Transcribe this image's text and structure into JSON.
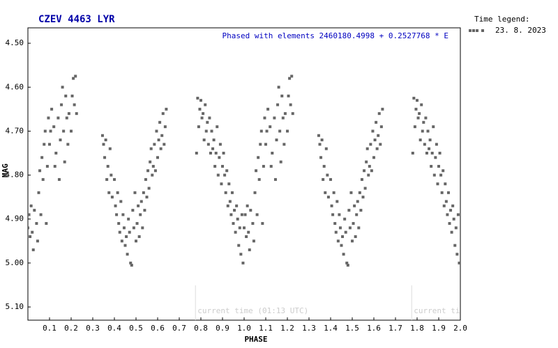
{
  "chart_data": {
    "type": "scatter",
    "title": "CZEV 4463 LYR",
    "subtitle": "Phased with elements 2460180.4998 + 0.2527768 * E",
    "x_label": "PHASE",
    "y_label": "MAG",
    "legend_title": "Time legend:",
    "y_inverted": true,
    "xlim": [
      0,
      2
    ],
    "ylim": [
      4.465,
      5.13
    ],
    "xticks": [
      0.1,
      0.2,
      0.3,
      0.4,
      0.5,
      0.6,
      0.7,
      0.8,
      0.9,
      {
        "value": 1,
        "label": "1.0"
      },
      1.1,
      1.2,
      1.3,
      1.4,
      1.5,
      1.6,
      1.7,
      1.8,
      1.9,
      {
        "value": 2,
        "label": "2.0"
      }
    ],
    "yticks": [
      {
        "value": 4.5,
        "label": "4.50"
      },
      {
        "value": 4.6,
        "label": "4.60"
      },
      {
        "value": 4.7,
        "label": "4.70"
      },
      {
        "value": 4.8,
        "label": "4.80"
      },
      {
        "value": 4.9,
        "label": "4.90"
      },
      {
        "value": 5.0,
        "label": "5.00"
      },
      {
        "value": 5.1,
        "label": "5.10"
      }
    ],
    "current_time": {
      "label": "current time (01:13 UTC)",
      "phases": [
        0.775,
        1.775
      ]
    },
    "series": [
      {
        "name": "23. 8. 2023",
        "color": "#666666",
        "x": [
          0,
          0.005,
          0.01,
          0.015,
          0.02,
          0.025,
          0.03,
          0.04,
          0.045,
          0.05,
          0.055,
          0.06,
          0.065,
          0.07,
          0.075,
          0.08,
          0.085,
          0.09,
          0.095,
          0.1,
          0.105,
          0.11,
          0.12,
          0.125,
          0.13,
          0.14,
          0.145,
          0.15,
          0.155,
          0.16,
          0.165,
          0.17,
          0.175,
          0.18,
          0.185,
          0.19,
          0.2,
          0.205,
          0.21,
          0.215,
          0.22,
          0.225,
          0.345,
          0.35,
          0.355,
          0.36,
          0.365,
          0.37,
          0.375,
          0.38,
          0.385,
          0.39,
          0.4,
          0.405,
          0.41,
          0.415,
          0.42,
          0.425,
          0.43,
          0.435,
          0.44,
          0.445,
          0.45,
          0.455,
          0.46,
          0.465,
          0.47,
          0.475,
          0.48,
          0.485,
          0.49,
          0.495,
          0.5,
          0.505,
          0.51,
          0.515,
          0.52,
          0.525,
          0.53,
          0.535,
          0.54,
          0.545,
          0.55,
          0.555,
          0.56,
          0.565,
          0.57,
          0.575,
          0.58,
          0.585,
          0.59,
          0.595,
          0.6,
          0.605,
          0.61,
          0.615,
          0.62,
          0.625,
          0.63,
          0.635,
          0.64,
          0.78,
          0.785,
          0.79,
          0.795,
          0.8,
          0.805,
          0.81,
          0.815,
          0.82,
          0.825,
          0.83,
          0.835,
          0.84,
          0.845,
          0.85,
          0.855,
          0.86,
          0.865,
          0.87,
          0.875,
          0.88,
          0.885,
          0.89,
          0.895,
          0.9,
          0.905,
          0.91,
          0.915,
          0.92,
          0.925,
          0.93,
          0.935,
          0.94,
          0.945,
          0.95,
          0.955,
          0.96,
          0.965,
          0.97,
          0.975,
          0.98,
          0.985,
          0.99,
          0.995,
          1,
          1.005,
          1.01,
          1.015,
          1.02,
          1.025,
          1.03,
          1.04,
          1.045,
          1.05,
          1.055,
          1.06,
          1.065,
          1.07,
          1.075,
          1.08,
          1.085,
          1.09,
          1.095,
          1.1,
          1.105,
          1.11,
          1.12,
          1.125,
          1.13,
          1.14,
          1.145,
          1.15,
          1.155,
          1.16,
          1.165,
          1.17,
          1.175,
          1.18,
          1.185,
          1.19,
          1.2,
          1.205,
          1.21,
          1.215,
          1.22,
          1.225,
          1.345,
          1.35,
          1.355,
          1.36,
          1.365,
          1.37,
          1.375,
          1.38,
          1.385,
          1.39,
          1.4,
          1.405,
          1.41,
          1.415,
          1.42,
          1.425,
          1.43,
          1.435,
          1.44,
          1.445,
          1.45,
          1.455,
          1.46,
          1.465,
          1.47,
          1.475,
          1.48,
          1.485,
          1.49,
          1.495,
          1.5,
          1.505,
          1.51,
          1.515,
          1.52,
          1.525,
          1.53,
          1.535,
          1.54,
          1.545,
          1.55,
          1.555,
          1.56,
          1.565,
          1.57,
          1.575,
          1.58,
          1.585,
          1.59,
          1.595,
          1.6,
          1.605,
          1.61,
          1.615,
          1.62,
          1.625,
          1.63,
          1.635,
          1.64,
          1.78,
          1.785,
          1.79,
          1.795,
          1.8,
          1.805,
          1.81,
          1.815,
          1.82,
          1.825,
          1.83,
          1.835,
          1.84,
          1.845,
          1.85,
          1.855,
          1.86,
          1.865,
          1.87,
          1.875,
          1.88,
          1.885,
          1.89,
          1.895,
          1.9,
          1.905,
          1.91,
          1.915,
          1.92,
          1.925,
          1.93,
          1.935,
          1.94,
          1.945,
          1.95,
          1.955,
          1.96,
          1.965,
          1.97,
          1.975,
          1.98,
          1.985,
          1.99,
          1.995
        ],
        "values": [
          4.92,
          4.89,
          4.94,
          4.87,
          4.93,
          4.97,
          4.88,
          4.91,
          4.95,
          4.84,
          4.79,
          4.89,
          4.76,
          4.81,
          4.73,
          4.7,
          4.91,
          4.78,
          4.67,
          4.73,
          4.7,
          4.65,
          4.69,
          4.78,
          4.75,
          4.67,
          4.81,
          4.72,
          4.64,
          4.6,
          4.7,
          4.77,
          4.62,
          4.67,
          4.73,
          4.66,
          4.7,
          4.62,
          4.58,
          4.64,
          4.575,
          4.66,
          4.71,
          4.73,
          4.76,
          4.72,
          4.81,
          4.78,
          4.84,
          4.74,
          4.8,
          4.85,
          4.81,
          4.87,
          4.89,
          4.84,
          4.91,
          4.93,
          4.86,
          4.95,
          4.89,
          4.92,
          4.96,
          4.94,
          4.98,
          4.9,
          4.93,
          5.0,
          5.005,
          4.88,
          4.92,
          4.84,
          4.95,
          4.91,
          4.87,
          4.94,
          4.89,
          4.86,
          4.92,
          4.84,
          4.88,
          4.81,
          4.85,
          4.79,
          4.83,
          4.77,
          4.74,
          4.8,
          4.78,
          4.73,
          4.79,
          4.7,
          4.76,
          4.72,
          4.68,
          4.74,
          4.71,
          4.66,
          4.73,
          4.69,
          4.65,
          4.75,
          4.625,
          4.69,
          4.65,
          4.63,
          4.67,
          4.66,
          4.72,
          4.64,
          4.7,
          4.68,
          4.73,
          4.67,
          4.75,
          4.7,
          4.74,
          4.72,
          4.78,
          4.75,
          4.69,
          4.8,
          4.76,
          4.73,
          4.82,
          4.78,
          4.75,
          4.8,
          4.84,
          4.79,
          4.87,
          4.82,
          4.86,
          4.89,
          4.84,
          4.91,
          4.88,
          4.93,
          4.87,
          4.9,
          4.96,
          4.92,
          4.98,
          4.89,
          5.0,
          4.92,
          4.89,
          4.94,
          4.87,
          4.93,
          4.97,
          4.88,
          4.91,
          4.95,
          4.84,
          4.79,
          4.89,
          4.76,
          4.81,
          4.73,
          4.7,
          4.91,
          4.78,
          4.67,
          4.73,
          4.7,
          4.65,
          4.69,
          4.78,
          4.75,
          4.67,
          4.81,
          4.72,
          4.64,
          4.6,
          4.7,
          4.77,
          4.62,
          4.67,
          4.73,
          4.66,
          4.7,
          4.62,
          4.58,
          4.64,
          4.575,
          4.66,
          4.71,
          4.73,
          4.76,
          4.72,
          4.81,
          4.78,
          4.84,
          4.74,
          4.8,
          4.85,
          4.81,
          4.87,
          4.89,
          4.84,
          4.91,
          4.93,
          4.86,
          4.95,
          4.89,
          4.92,
          4.96,
          4.94,
          4.98,
          4.9,
          4.93,
          5.0,
          5.005,
          4.88,
          4.92,
          4.84,
          4.95,
          4.91,
          4.87,
          4.94,
          4.89,
          4.86,
          4.92,
          4.84,
          4.88,
          4.81,
          4.85,
          4.79,
          4.83,
          4.77,
          4.74,
          4.8,
          4.78,
          4.73,
          4.79,
          4.7,
          4.76,
          4.72,
          4.68,
          4.74,
          4.71,
          4.66,
          4.73,
          4.69,
          4.65,
          4.75,
          4.625,
          4.69,
          4.65,
          4.63,
          4.67,
          4.66,
          4.72,
          4.64,
          4.7,
          4.68,
          4.73,
          4.67,
          4.75,
          4.7,
          4.74,
          4.72,
          4.78,
          4.75,
          4.69,
          4.8,
          4.76,
          4.73,
          4.82,
          4.78,
          4.75,
          4.8,
          4.84,
          4.79,
          4.87,
          4.82,
          4.86,
          4.89,
          4.84,
          4.91,
          4.88,
          4.93,
          4.87,
          4.9,
          4.96,
          4.92,
          4.98,
          4.89,
          5.0
        ]
      }
    ]
  }
}
